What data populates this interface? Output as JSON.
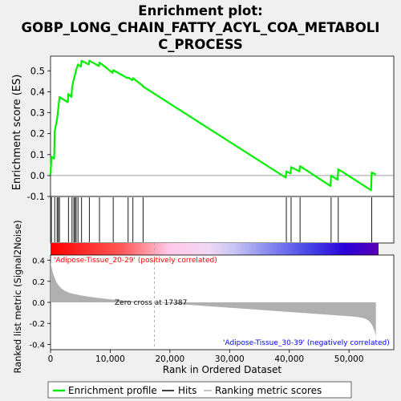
{
  "chart_data": {
    "type": "line",
    "title": "Enrichment plot:\nGOBP_LONG_CHAIN_FATTY_ACYL_COA_METABOLI\nC_PROCESS",
    "title_lines": [
      "Enrichment plot:",
      "GOBP_LONG_CHAIN_FATTY_ACYL_COA_METABOLI",
      "C_PROCESS"
    ],
    "ylabel_top": "Enrichment score (ES)",
    "ylabel_bottom": "Ranked list metric (Signal2Noise)",
    "xlabel": "Rank in Ordered Dataset",
    "es_yticks": [
      "-0.1",
      "0.0",
      "0.1",
      "0.2",
      "0.3",
      "0.4",
      "0.5"
    ],
    "es_ylim": [
      -0.1,
      0.57
    ],
    "metric_yticks": [
      "-0.4",
      "-0.2",
      "0.0",
      "0.2",
      "0.4"
    ],
    "metric_ylim": [
      -0.45,
      0.45
    ],
    "xticks": [
      "0",
      "10,000",
      "20,000",
      "30,000",
      "40,000",
      "50,000"
    ],
    "xlim": [
      0,
      57500
    ],
    "n_genes": 54500,
    "zero_cross": 17387,
    "zero_cross_label": "Zero cross at 17387",
    "pos_label": "'Adipose-Tissue_20-29' (positively correlated)",
    "neg_label": "'Adipose-Tissue_30-39' (negatively correlated)",
    "legend": {
      "enrichment": "Enrichment profile",
      "hits": "Hits",
      "metric": "Ranking metric scores"
    },
    "colors": {
      "es_line": "#00ee00",
      "hits": "#000000",
      "metric_fill": "#b0b0b0",
      "pos_label": "#ff0000",
      "neg_label": "#0000ff"
    },
    "hits": [
      150,
      700,
      1100,
      1300,
      1500,
      3000,
      3600,
      3900,
      4100,
      4300,
      4600,
      5200,
      6500,
      8200,
      10500,
      13000,
      13800,
      15500,
      39500,
      40300,
      41800,
      47000,
      48200,
      53800
    ],
    "es_points": [
      [
        0,
        0.0
      ],
      [
        150,
        0.09
      ],
      [
        600,
        0.08
      ],
      [
        700,
        0.21
      ],
      [
        1100,
        0.27
      ],
      [
        1300,
        0.32
      ],
      [
        1500,
        0.375
      ],
      [
        2900,
        0.35
      ],
      [
        3000,
        0.39
      ],
      [
        3500,
        0.375
      ],
      [
        3600,
        0.42
      ],
      [
        3900,
        0.46
      ],
      [
        4100,
        0.48
      ],
      [
        4300,
        0.505
      ],
      [
        4600,
        0.53
      ],
      [
        5100,
        0.52
      ],
      [
        5200,
        0.548
      ],
      [
        6400,
        0.53
      ],
      [
        6500,
        0.548
      ],
      [
        8100,
        0.523
      ],
      [
        8200,
        0.54
      ],
      [
        10400,
        0.49
      ],
      [
        10500,
        0.503
      ],
      [
        12900,
        0.465
      ],
      [
        13000,
        0.468
      ],
      [
        13700,
        0.455
      ],
      [
        13800,
        0.465
      ],
      [
        15400,
        0.43
      ],
      [
        15500,
        0.425
      ],
      [
        39400,
        -0.01
      ],
      [
        39500,
        0.02
      ],
      [
        40200,
        0.01
      ],
      [
        40300,
        0.04
      ],
      [
        41700,
        0.02
      ],
      [
        41800,
        0.045
      ],
      [
        46900,
        -0.05
      ],
      [
        47000,
        0.0
      ],
      [
        48100,
        -0.02
      ],
      [
        48200,
        0.03
      ],
      [
        53700,
        -0.07
      ],
      [
        53800,
        0.015
      ],
      [
        54500,
        0.005
      ]
    ]
  }
}
